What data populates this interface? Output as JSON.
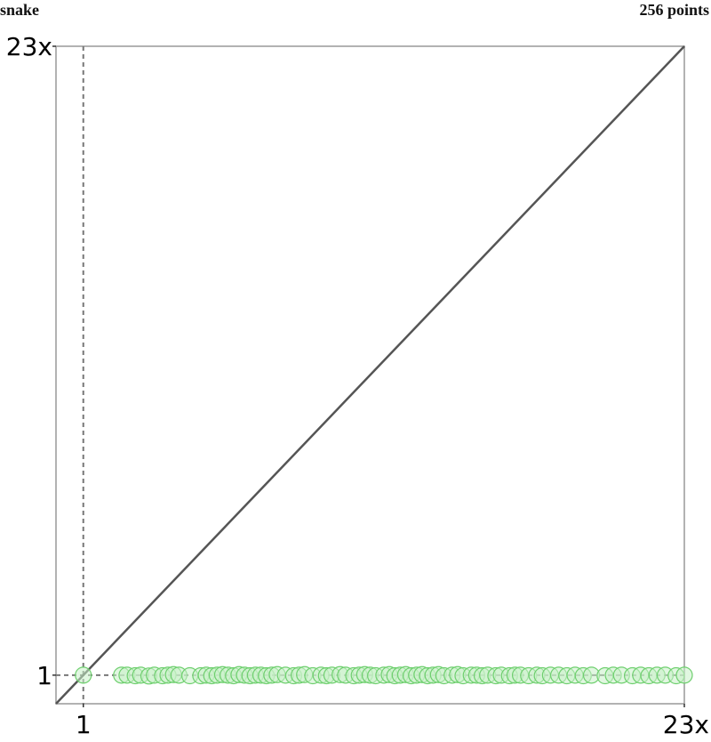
{
  "header": {
    "left_label": "snake",
    "right_label": "256 points"
  },
  "chart_data": {
    "type": "scatter",
    "title": "",
    "xlabel": "",
    "ylabel": "",
    "x_tick_labels": [
      "1",
      "23x"
    ],
    "y_tick_labels": [
      "1",
      "23x"
    ],
    "x_ticks": [
      1,
      23
    ],
    "y_ticks": [
      1,
      23
    ],
    "xlim": [
      0,
      23
    ],
    "ylim": [
      0,
      23
    ],
    "reference_line": "y = x",
    "reference_crosshair_at": 1,
    "grid": false,
    "legend": "none",
    "point_color": "#6ecf6e",
    "point_fill": "#c8f0c8",
    "series": [
      {
        "values": [
          {
            "x": 1.0,
            "y": 1.0
          },
          {
            "x": 2.4,
            "y": 1.0
          },
          {
            "x": 2.6,
            "y": 1.0
          },
          {
            "x": 2.9,
            "y": 0.98
          },
          {
            "x": 3.1,
            "y": 1.0
          },
          {
            "x": 3.4,
            "y": 0.97
          },
          {
            "x": 3.6,
            "y": 1.0
          },
          {
            "x": 3.9,
            "y": 0.98
          },
          {
            "x": 4.1,
            "y": 1.0
          },
          {
            "x": 4.3,
            "y": 1.02
          },
          {
            "x": 4.5,
            "y": 1.0
          },
          {
            "x": 4.9,
            "y": 0.98
          },
          {
            "x": 5.3,
            "y": 0.98
          },
          {
            "x": 5.5,
            "y": 1.0
          },
          {
            "x": 5.7,
            "y": 0.98
          },
          {
            "x": 5.9,
            "y": 1.0
          },
          {
            "x": 6.1,
            "y": 1.02
          },
          {
            "x": 6.3,
            "y": 1.0
          },
          {
            "x": 6.5,
            "y": 0.98
          },
          {
            "x": 6.7,
            "y": 1.02
          },
          {
            "x": 6.9,
            "y": 1.0
          },
          {
            "x": 7.1,
            "y": 0.98
          },
          {
            "x": 7.3,
            "y": 1.0
          },
          {
            "x": 7.5,
            "y": 1.0
          },
          {
            "x": 7.7,
            "y": 0.98
          },
          {
            "x": 7.9,
            "y": 1.0
          },
          {
            "x": 8.1,
            "y": 1.02
          },
          {
            "x": 8.4,
            "y": 1.0
          },
          {
            "x": 8.7,
            "y": 0.98
          },
          {
            "x": 8.9,
            "y": 1.0
          },
          {
            "x": 9.1,
            "y": 1.02
          },
          {
            "x": 9.4,
            "y": 0.98
          },
          {
            "x": 9.7,
            "y": 1.0
          },
          {
            "x": 9.9,
            "y": 0.98
          },
          {
            "x": 10.1,
            "y": 1.0
          },
          {
            "x": 10.4,
            "y": 1.02
          },
          {
            "x": 10.6,
            "y": 1.0
          },
          {
            "x": 10.9,
            "y": 0.98
          },
          {
            "x": 11.1,
            "y": 1.0
          },
          {
            "x": 11.3,
            "y": 1.02
          },
          {
            "x": 11.5,
            "y": 1.0
          },
          {
            "x": 11.7,
            "y": 0.98
          },
          {
            "x": 12.0,
            "y": 1.0
          },
          {
            "x": 12.2,
            "y": 1.02
          },
          {
            "x": 12.4,
            "y": 0.98
          },
          {
            "x": 12.6,
            "y": 1.0
          },
          {
            "x": 12.8,
            "y": 1.02
          },
          {
            "x": 13.0,
            "y": 0.98
          },
          {
            "x": 13.2,
            "y": 1.0
          },
          {
            "x": 13.4,
            "y": 1.02
          },
          {
            "x": 13.6,
            "y": 0.98
          },
          {
            "x": 13.8,
            "y": 1.0
          },
          {
            "x": 14.0,
            "y": 1.02
          },
          {
            "x": 14.2,
            "y": 0.98
          },
          {
            "x": 14.5,
            "y": 1.0
          },
          {
            "x": 14.7,
            "y": 1.02
          },
          {
            "x": 14.9,
            "y": 0.98
          },
          {
            "x": 15.2,
            "y": 1.0
          },
          {
            "x": 15.4,
            "y": 1.0
          },
          {
            "x": 15.6,
            "y": 0.98
          },
          {
            "x": 15.8,
            "y": 1.0
          },
          {
            "x": 16.1,
            "y": 0.98
          },
          {
            "x": 16.3,
            "y": 1.0
          },
          {
            "x": 16.6,
            "y": 0.98
          },
          {
            "x": 16.8,
            "y": 1.0
          },
          {
            "x": 17.0,
            "y": 1.0
          },
          {
            "x": 17.3,
            "y": 0.98
          },
          {
            "x": 17.6,
            "y": 1.0
          },
          {
            "x": 17.8,
            "y": 0.98
          },
          {
            "x": 18.1,
            "y": 1.0
          },
          {
            "x": 18.4,
            "y": 1.0
          },
          {
            "x": 18.7,
            "y": 0.98
          },
          {
            "x": 19.0,
            "y": 1.0
          },
          {
            "x": 19.3,
            "y": 0.98
          },
          {
            "x": 19.6,
            "y": 1.0
          },
          {
            "x": 20.1,
            "y": 0.98
          },
          {
            "x": 20.4,
            "y": 1.0
          },
          {
            "x": 20.7,
            "y": 1.0
          },
          {
            "x": 21.1,
            "y": 0.98
          },
          {
            "x": 21.4,
            "y": 1.0
          },
          {
            "x": 21.7,
            "y": 0.98
          },
          {
            "x": 22.0,
            "y": 1.0
          },
          {
            "x": 22.3,
            "y": 1.0
          },
          {
            "x": 22.7,
            "y": 0.98
          },
          {
            "x": 23.0,
            "y": 1.0
          }
        ]
      }
    ]
  }
}
